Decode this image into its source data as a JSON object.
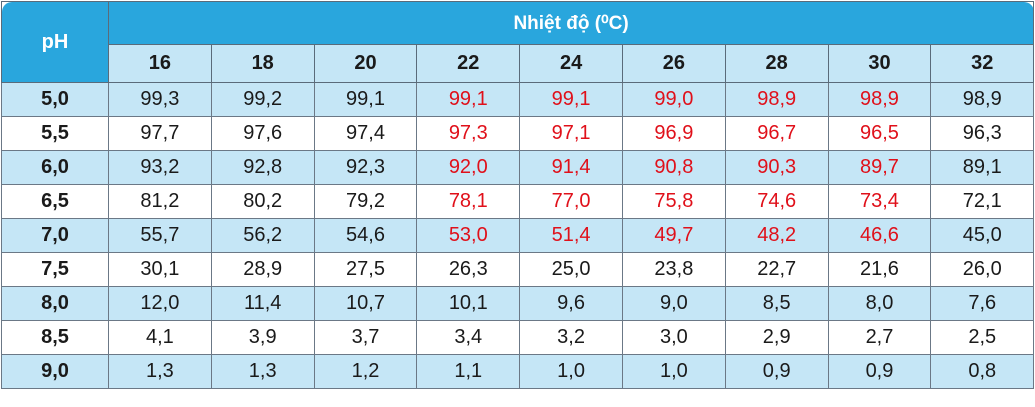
{
  "table": {
    "ph_header": "pH",
    "group_header": "Nhiệt độ (⁰C)",
    "temperatures": [
      "16",
      "18",
      "20",
      "22",
      "24",
      "26",
      "28",
      "30",
      "32"
    ],
    "rows": [
      {
        "ph": "5,0",
        "values": [
          "99,3",
          "99,2",
          "99,1",
          "99,1",
          "99,1",
          "99,0",
          "98,9",
          "98,9",
          "98,9"
        ]
      },
      {
        "ph": "5,5",
        "values": [
          "97,7",
          "97,6",
          "97,4",
          "97,3",
          "97,1",
          "96,9",
          "96,7",
          "96,5",
          "96,3"
        ]
      },
      {
        "ph": "6,0",
        "values": [
          "93,2",
          "92,8",
          "92,3",
          "92,0",
          "91,4",
          "90,8",
          "90,3",
          "89,7",
          "89,1"
        ]
      },
      {
        "ph": "6,5",
        "values": [
          "81,2",
          "80,2",
          "79,2",
          "78,1",
          "77,0",
          "75,8",
          "74,6",
          "73,4",
          "72,1"
        ]
      },
      {
        "ph": "7,0",
        "values": [
          "55,7",
          "56,2",
          "54,6",
          "53,0",
          "51,4",
          "49,7",
          "48,2",
          "46,6",
          "45,0"
        ]
      },
      {
        "ph": "7,5",
        "values": [
          "30,1",
          "28,9",
          "27,5",
          "26,3",
          "25,0",
          "23,8",
          "22,7",
          "21,6",
          "26,0"
        ]
      },
      {
        "ph": "8,0",
        "values": [
          "12,0",
          "11,4",
          "10,7",
          "10,1",
          "9,6",
          "9,0",
          "8,5",
          "8,0",
          "7,6"
        ]
      },
      {
        "ph": "8,5",
        "values": [
          "4,1",
          "3,9",
          "3,7",
          "3,4",
          "3,2",
          "3,0",
          "2,9",
          "2,7",
          "2,5"
        ]
      },
      {
        "ph": "9,0",
        "values": [
          "1,3",
          "1,3",
          "1,2",
          "1,1",
          "1,0",
          "1,0",
          "0,9",
          "0,9",
          "0,8"
        ]
      }
    ]
  },
  "colors": {
    "header_blue": "#29a6dd",
    "band_light_blue": "#c5e6f6",
    "highlight_red": "#e0101a"
  }
}
